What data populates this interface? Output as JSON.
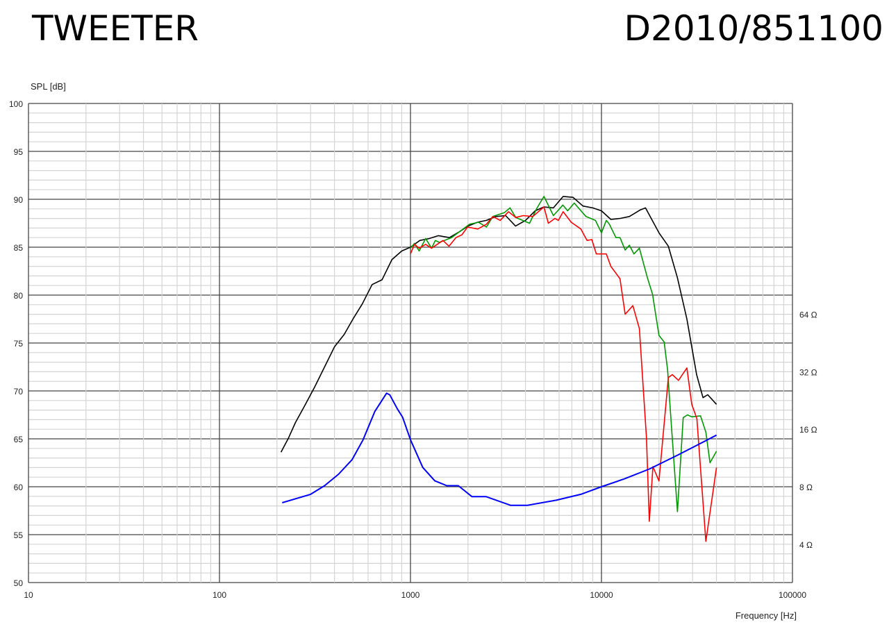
{
  "header": {
    "left_title": "TWEETER",
    "right_title": "D2010/851100"
  },
  "chart_data": {
    "type": "line",
    "ylabel": "SPL [dB]",
    "xlabel": "Frequency [Hz]",
    "x_scale": "log",
    "xlim": [
      10,
      100000
    ],
    "ylim": [
      50,
      100
    ],
    "grid": true,
    "x_ticks": [
      "10",
      "100",
      "1000",
      "10000",
      "100000"
    ],
    "y_ticks": [
      "50",
      "55",
      "60",
      "65",
      "70",
      "75",
      "80",
      "85",
      "90",
      "95",
      "100"
    ],
    "y2_scale": "log2",
    "y2_ticks": [
      {
        "label": "4 Ω",
        "ohm": 4
      },
      {
        "label": "8 Ω",
        "ohm": 8
      },
      {
        "label": "16 Ω",
        "ohm": 16
      },
      {
        "label": "32 Ω",
        "ohm": 32
      },
      {
        "label": "64 Ω",
        "ohm": 64
      }
    ],
    "series": [
      {
        "axis": "spl",
        "color": "#000000",
        "points": [
          [
            210,
            63.6
          ],
          [
            230,
            65.1
          ],
          [
            250,
            66.7
          ],
          [
            280,
            68.5
          ],
          [
            315,
            70.4
          ],
          [
            355,
            72.5
          ],
          [
            400,
            74.6
          ],
          [
            450,
            75.9
          ],
          [
            500,
            77.5
          ],
          [
            560,
            79.1
          ],
          [
            630,
            81.1
          ],
          [
            710,
            81.6
          ],
          [
            800,
            83.7
          ],
          [
            900,
            84.6
          ],
          [
            1000,
            85.0
          ],
          [
            1120,
            85.7
          ],
          [
            1250,
            85.9
          ],
          [
            1400,
            86.2
          ],
          [
            1600,
            86.0
          ],
          [
            1800,
            86.6
          ],
          [
            2000,
            87.2
          ],
          [
            2240,
            87.6
          ],
          [
            2500,
            87.8
          ],
          [
            2800,
            88.2
          ],
          [
            3150,
            88.3
          ],
          [
            3550,
            87.2
          ],
          [
            4000,
            87.8
          ],
          [
            4500,
            88.8
          ],
          [
            5000,
            89.2
          ],
          [
            5600,
            89.1
          ],
          [
            6300,
            90.3
          ],
          [
            7100,
            90.2
          ],
          [
            8000,
            89.3
          ],
          [
            9000,
            89.1
          ],
          [
            10000,
            88.8
          ],
          [
            11200,
            87.9
          ],
          [
            12500,
            88.0
          ],
          [
            14000,
            88.2
          ],
          [
            16000,
            88.9
          ],
          [
            17000,
            89.1
          ],
          [
            20000,
            86.5
          ],
          [
            22400,
            85.1
          ],
          [
            25000,
            81.8
          ],
          [
            28000,
            77.5
          ],
          [
            31500,
            71.7
          ],
          [
            34000,
            69.3
          ],
          [
            36000,
            69.6
          ],
          [
            40000,
            68.6
          ]
        ]
      },
      {
        "axis": "spl",
        "color": "#009900",
        "points": [
          [
            1000,
            84.9
          ],
          [
            1050,
            85.4
          ],
          [
            1110,
            84.6
          ],
          [
            1200,
            85.9
          ],
          [
            1290,
            84.9
          ],
          [
            1350,
            85.7
          ],
          [
            1420,
            85.5
          ],
          [
            1640,
            86.0
          ],
          [
            1830,
            86.7
          ],
          [
            2040,
            87.4
          ],
          [
            2270,
            87.6
          ],
          [
            2500,
            87.1
          ],
          [
            2700,
            88.2
          ],
          [
            3100,
            88.6
          ],
          [
            3320,
            89.1
          ],
          [
            3560,
            88.1
          ],
          [
            4200,
            87.5
          ],
          [
            4600,
            89.1
          ],
          [
            5000,
            90.3
          ],
          [
            5600,
            88.3
          ],
          [
            6280,
            89.4
          ],
          [
            6650,
            88.8
          ],
          [
            7200,
            89.6
          ],
          [
            8300,
            88.2
          ],
          [
            9300,
            87.8
          ],
          [
            10000,
            86.5
          ],
          [
            10600,
            87.8
          ],
          [
            11000,
            87.4
          ],
          [
            11900,
            86.0
          ],
          [
            12500,
            86.0
          ],
          [
            13300,
            84.7
          ],
          [
            14000,
            85.2
          ],
          [
            14800,
            84.3
          ],
          [
            15800,
            84.9
          ],
          [
            17400,
            81.8
          ],
          [
            18500,
            80.1
          ],
          [
            20000,
            75.8
          ],
          [
            21300,
            75.1
          ],
          [
            22200,
            72.2
          ],
          [
            23100,
            67.1
          ],
          [
            25000,
            57.4
          ],
          [
            26800,
            67.2
          ],
          [
            28200,
            67.5
          ],
          [
            29700,
            67.3
          ],
          [
            33000,
            67.4
          ],
          [
            35200,
            65.7
          ],
          [
            37000,
            62.5
          ],
          [
            40000,
            63.7
          ]
        ]
      },
      {
        "axis": "spl",
        "color": "#ff0000",
        "points": [
          [
            1000,
            84.3
          ],
          [
            1050,
            85.3
          ],
          [
            1110,
            84.9
          ],
          [
            1200,
            85.3
          ],
          [
            1290,
            84.9
          ],
          [
            1480,
            85.7
          ],
          [
            1590,
            85.1
          ],
          [
            1730,
            86.0
          ],
          [
            1860,
            86.3
          ],
          [
            1990,
            87.1
          ],
          [
            2250,
            86.9
          ],
          [
            2500,
            87.4
          ],
          [
            2700,
            88.2
          ],
          [
            2950,
            87.8
          ],
          [
            3260,
            88.7
          ],
          [
            3560,
            88.1
          ],
          [
            3900,
            88.3
          ],
          [
            4370,
            88.2
          ],
          [
            5000,
            89.2
          ],
          [
            5270,
            87.5
          ],
          [
            5700,
            88.0
          ],
          [
            5950,
            87.8
          ],
          [
            6300,
            88.7
          ],
          [
            6950,
            87.6
          ],
          [
            7800,
            86.9
          ],
          [
            8400,
            85.7
          ],
          [
            8900,
            85.8
          ],
          [
            9400,
            84.3
          ],
          [
            10600,
            84.3
          ],
          [
            11200,
            83.0
          ],
          [
            12500,
            81.7
          ],
          [
            13300,
            78.0
          ],
          [
            14600,
            78.9
          ],
          [
            15800,
            76.5
          ],
          [
            17200,
            65.1
          ],
          [
            17800,
            56.4
          ],
          [
            18600,
            62.1
          ],
          [
            20000,
            60.6
          ],
          [
            22400,
            71.4
          ],
          [
            23500,
            71.7
          ],
          [
            25300,
            71.1
          ],
          [
            28000,
            72.4
          ],
          [
            29700,
            68.6
          ],
          [
            31600,
            67.1
          ],
          [
            35200,
            54.3
          ],
          [
            40000,
            62.0
          ]
        ]
      },
      {
        "axis": "impedance",
        "color": "#0000ff",
        "points": [
          [
            213,
            6.6
          ],
          [
            300,
            7.3
          ],
          [
            355,
            8.1
          ],
          [
            420,
            9.3
          ],
          [
            495,
            11.1
          ],
          [
            565,
            14.1
          ],
          [
            650,
            19.8
          ],
          [
            750,
            24.7
          ],
          [
            780,
            24.2
          ],
          [
            855,
            20.4
          ],
          [
            910,
            18.5
          ],
          [
            1000,
            14.1
          ],
          [
            1160,
            10.1
          ],
          [
            1340,
            8.6
          ],
          [
            1550,
            8.1
          ],
          [
            1780,
            8.1
          ],
          [
            2100,
            7.1
          ],
          [
            2490,
            7.1
          ],
          [
            3340,
            6.4
          ],
          [
            4100,
            6.4
          ],
          [
            5800,
            6.8
          ],
          [
            7800,
            7.3
          ],
          [
            10000,
            8.0
          ],
          [
            13200,
            8.8
          ],
          [
            17800,
            9.9
          ],
          [
            25000,
            11.7
          ],
          [
            30700,
            13.0
          ],
          [
            40000,
            14.9
          ]
        ]
      }
    ]
  }
}
